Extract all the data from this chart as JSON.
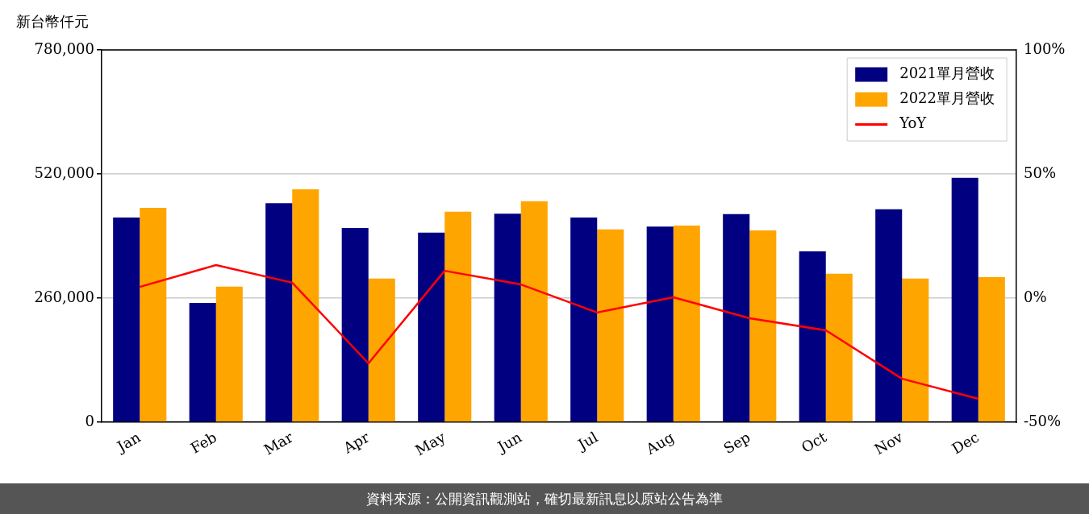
{
  "chart_data": {
    "type": "bar",
    "ylabel": "新台幣仟元",
    "categories": [
      "Jan",
      "Feb",
      "Mar",
      "Apr",
      "May",
      "Jun",
      "Jul",
      "Aug",
      "Sep",
      "Oct",
      "Nov",
      "Dec"
    ],
    "series": [
      {
        "name": "2021單月營收",
        "color": "#000080",
        "values": [
          429000,
          250000,
          459000,
          407000,
          397000,
          437000,
          429000,
          410000,
          436000,
          358000,
          446000,
          512000
        ]
      },
      {
        "name": "2022單月營收",
        "color": "#ffa500",
        "values": [
          449000,
          284000,
          488000,
          301000,
          441000,
          463000,
          404000,
          412000,
          402000,
          311000,
          301000,
          304000
        ]
      },
      {
        "name": "YoY",
        "type": "line",
        "axis": "y2",
        "color": "#ff0000",
        "values": [
          4.5,
          13.3,
          6.2,
          -26.3,
          11.0,
          5.5,
          -5.8,
          0.3,
          -8.1,
          -13.0,
          -32.5,
          -40.6
        ]
      }
    ],
    "ylim": [
      0,
      780000
    ],
    "yticks": [
      {
        "value": 0,
        "label": "0"
      },
      {
        "value": 260000,
        "label": "260,000"
      },
      {
        "value": 520000,
        "label": "520,000"
      },
      {
        "value": 780000,
        "label": "780,000"
      }
    ],
    "y2lim": [
      -50,
      100
    ],
    "y2ticks": [
      {
        "value": -50,
        "label": "-50%"
      },
      {
        "value": 0,
        "label": "0%"
      },
      {
        "value": 50,
        "label": "50%"
      },
      {
        "value": 100,
        "label": "100%"
      }
    ],
    "grid": "y",
    "legend": "top right",
    "marker": "none",
    "line_style": "solid",
    "annotations": [
      "資料來源：公開資訊觀測站，確切最新訊息以原站公告為準"
    ]
  }
}
